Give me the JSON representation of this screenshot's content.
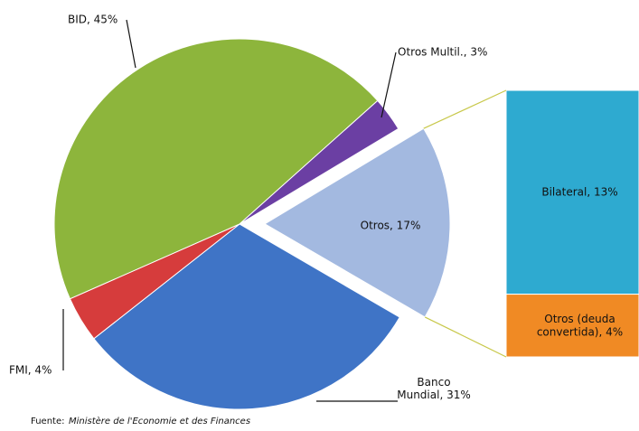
{
  "chart_data": {
    "type": "bar-of-pie",
    "values": [
      17,
      31,
      4,
      45,
      3
    ],
    "value_labels": [
      "Otros, 17%",
      "Banco\nMundial, 31%",
      "FMI, 4%",
      "BID, 45%",
      "Otros Multil., 3%"
    ],
    "colors": [
      "#a3b9e0",
      "#3f74c6",
      "#d63c3c",
      "#8db53c",
      "#6b3fa3"
    ],
    "bar_values": [
      13,
      4
    ],
    "bar_value_labels": [
      "Bilateral, 13%",
      "Otros (deuda\nconvertida), 4%"
    ],
    "bar_colors": [
      "#2eaad0",
      "#f08a24"
    ],
    "source": {
      "prefix": "Fuente:",
      "text": "Ministère de l'Economie et des Finances"
    }
  }
}
